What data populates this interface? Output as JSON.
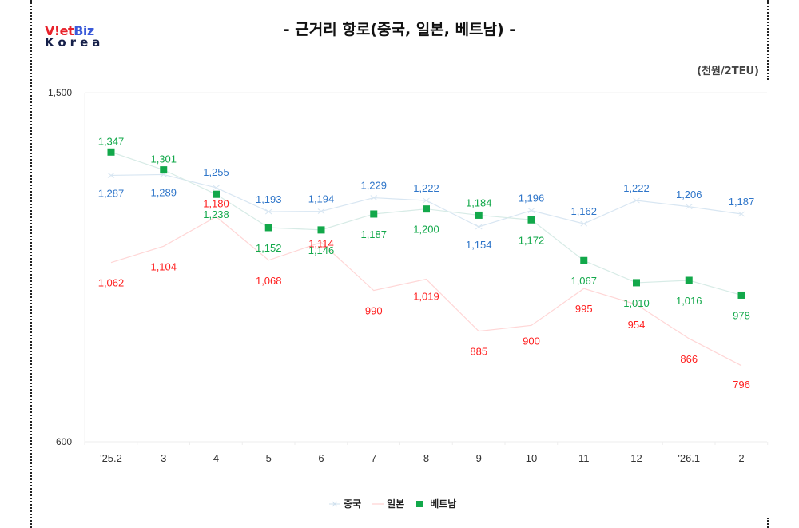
{
  "logo": {
    "part1": "V!et",
    "part2": "Biz",
    "part3": "Korea"
  },
  "header": {
    "title": "- 근거리 항로(중국, 일본, 베트남) -",
    "unit": "(천원/2TEU)"
  },
  "chart_data": {
    "type": "line",
    "title": "- 근거리 항로(중국, 일본, 베트남) -",
    "ylabel": "(천원/2TEU)",
    "xlabel": "",
    "ylim": [
      600,
      1500
    ],
    "yticks": [
      "1,500",
      "600"
    ],
    "grid": false,
    "legend_position": "bottom",
    "categories": [
      "'25.2",
      "3",
      "4",
      "5",
      "6",
      "7",
      "8",
      "9",
      "10",
      "11",
      "12",
      "'26.1",
      "2"
    ],
    "series": [
      {
        "name": "중국",
        "color": "#2e75c9",
        "marker": "x",
        "values": [
          1287,
          1289,
          1255,
          1193,
          1194,
          1229,
          1222,
          1154,
          1196,
          1162,
          1222,
          1206,
          1187
        ],
        "labels": [
          "1,287",
          "1,289",
          "1,255",
          "1,193",
          "1,194",
          "1,229",
          "1,222",
          "1,154",
          "1,196",
          "1,162",
          "1,222",
          "1,206",
          "1,187"
        ]
      },
      {
        "name": "일본",
        "color": "#ff1f1f",
        "marker": "none",
        "values": [
          1062,
          1104,
          1180,
          1068,
          1114,
          990,
          1019,
          885,
          900,
          995,
          954,
          866,
          796
        ],
        "labels": [
          "1,062",
          "1,104",
          "1,180",
          "1,068",
          "1,114",
          "990",
          "1,019",
          "885",
          "900",
          "995",
          "954",
          "866",
          "796"
        ]
      },
      {
        "name": "베트남",
        "color": "#12a84a",
        "marker": "square",
        "values": [
          1347,
          1301,
          1238,
          1152,
          1146,
          1187,
          1200,
          1184,
          1172,
          1067,
          1010,
          1016,
          978
        ],
        "labels": [
          "1,347",
          "1,301",
          "1,238",
          "1,152",
          "1,146",
          "1,187",
          "1,200",
          "1,184",
          "1,172",
          "1,067",
          "1,010",
          "1,016",
          "978"
        ]
      }
    ]
  },
  "legend": [
    {
      "label": "중국"
    },
    {
      "label": "일본"
    },
    {
      "label": "베트남"
    }
  ]
}
